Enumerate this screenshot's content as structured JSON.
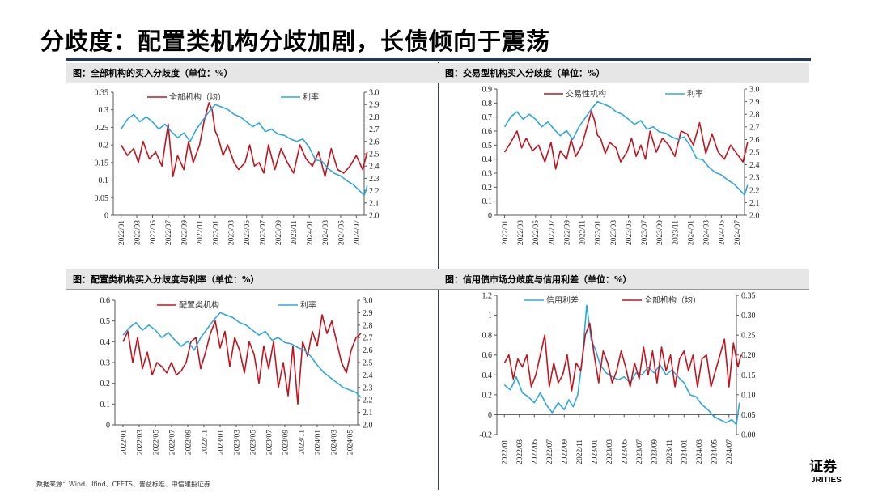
{
  "page": {
    "title": "分歧度：配置类机构分歧加剧，长债倾向于震荡",
    "source": "数据来源：Wind、Ifind、CFETS、普益标准、中信建投证券",
    "logo_text": "证券",
    "logo_subtext": "JRITIES",
    "colors": {
      "red": "#c0141e",
      "blue": "#2ea8dc",
      "rule": "#1f3a5f"
    }
  },
  "chart_data": [
    {
      "id": "p1",
      "type": "line",
      "title": "图：全部机构的买入分歧度（单位：%）",
      "x_labels": [
        "2022/01",
        "2022/03",
        "2022/05",
        "2022/07",
        "2022/09",
        "2022/11",
        "2023/01",
        "2023/03",
        "2023/05",
        "2023/07",
        "2023/09",
        "2023/11",
        "2024/01",
        "2024/03",
        "2024/05",
        "2024/07"
      ],
      "left_ticks": [
        "0",
        "0.05",
        "0.1",
        "0.15",
        "0.2",
        "0.25",
        "0.3",
        "0.35"
      ],
      "right_ticks": [
        "2.0",
        "2.1",
        "2.2",
        "2.3",
        "2.4",
        "2.5",
        "2.6",
        "2.7",
        "2.8",
        "2.9",
        "3.0"
      ],
      "left_range": [
        0,
        0.35
      ],
      "right_range": [
        2.0,
        3.0
      ],
      "series": [
        {
          "name": "全部机构（均）",
          "axis": "left",
          "color": "#c0141e",
          "x": [
            0,
            0.4,
            0.8,
            1.1,
            1.4,
            1.8,
            2.2,
            2.6,
            3.0,
            3.3,
            3.6,
            4.0,
            4.3,
            4.6,
            5.0,
            5.3,
            5.6,
            5.8,
            6.0,
            6.2,
            6.5,
            6.8,
            7.2,
            7.5,
            7.9,
            8.2,
            8.5,
            8.8,
            9.1,
            9.4,
            9.8,
            10.2,
            10.6,
            11.0,
            11.4,
            11.8,
            12.2,
            12.6,
            13.0,
            13.4,
            13.8,
            14.2,
            14.6,
            15.0,
            15.4,
            15.7
          ],
          "y": [
            0.2,
            0.17,
            0.19,
            0.15,
            0.21,
            0.16,
            0.18,
            0.14,
            0.26,
            0.11,
            0.17,
            0.13,
            0.21,
            0.15,
            0.2,
            0.27,
            0.32,
            0.3,
            0.24,
            0.22,
            0.17,
            0.2,
            0.15,
            0.13,
            0.15,
            0.2,
            0.14,
            0.15,
            0.12,
            0.2,
            0.13,
            0.19,
            0.15,
            0.12,
            0.2,
            0.16,
            0.14,
            0.18,
            0.11,
            0.19,
            0.13,
            0.12,
            0.14,
            0.17,
            0.13,
            0.18
          ]
        },
        {
          "name": "利率",
          "axis": "right",
          "color": "#2ea8dc",
          "x": [
            0,
            0.4,
            0.8,
            1.2,
            1.6,
            2.0,
            2.4,
            2.8,
            3.2,
            3.6,
            4.0,
            4.4,
            4.8,
            5.2,
            5.6,
            6.0,
            6.4,
            6.8,
            7.2,
            7.6,
            8.0,
            8.4,
            8.8,
            9.2,
            9.6,
            10.0,
            10.4,
            10.8,
            11.2,
            11.6,
            12.0,
            12.4,
            12.8,
            13.2,
            13.6,
            14.0,
            14.4,
            14.8,
            15.2,
            15.5,
            15.7
          ],
          "y": [
            2.7,
            2.78,
            2.82,
            2.76,
            2.8,
            2.76,
            2.7,
            2.74,
            2.68,
            2.63,
            2.67,
            2.6,
            2.7,
            2.77,
            2.84,
            2.9,
            2.88,
            2.86,
            2.82,
            2.8,
            2.76,
            2.72,
            2.75,
            2.68,
            2.7,
            2.66,
            2.65,
            2.62,
            2.6,
            2.62,
            2.55,
            2.45,
            2.44,
            2.38,
            2.34,
            2.32,
            2.28,
            2.25,
            2.2,
            2.16,
            2.24
          ]
        }
      ]
    },
    {
      "id": "p2",
      "type": "line",
      "title": "图：交易型机构买入分歧度（单位：%）",
      "x_labels": [
        "2022/01",
        "2022/03",
        "2022/05",
        "2022/07",
        "2022/09",
        "2022/11",
        "2023/01",
        "2023/03",
        "2023/05",
        "2023/07",
        "2023/09",
        "2023/11",
        "2024/01",
        "2024/03",
        "2024/05",
        "2024/07"
      ],
      "left_ticks": [
        "0",
        "0.1",
        "0.2",
        "0.3",
        "0.4",
        "0.5",
        "0.6",
        "0.7",
        "0.8",
        "0.9"
      ],
      "right_ticks": [
        "2.0",
        "2.1",
        "2.2",
        "2.3",
        "2.4",
        "2.5",
        "2.6",
        "2.7",
        "2.8",
        "2.9",
        "3.0"
      ],
      "left_range": [
        0,
        0.9
      ],
      "right_range": [
        2.0,
        3.0
      ],
      "series": [
        {
          "name": "交易性机构",
          "axis": "left",
          "color": "#c0141e",
          "x": [
            0,
            0.4,
            0.8,
            1.1,
            1.4,
            1.8,
            2.2,
            2.6,
            3.0,
            3.3,
            3.6,
            4.0,
            4.3,
            4.6,
            5.0,
            5.3,
            5.6,
            5.8,
            6.0,
            6.2,
            6.5,
            6.8,
            7.2,
            7.5,
            7.9,
            8.2,
            8.5,
            8.8,
            9.1,
            9.4,
            9.8,
            10.2,
            10.6,
            11.0,
            11.4,
            11.8,
            12.2,
            12.6,
            13.0,
            13.4,
            13.8,
            14.2,
            14.6,
            15.0,
            15.4,
            15.7
          ],
          "y": [
            0.45,
            0.52,
            0.6,
            0.48,
            0.55,
            0.46,
            0.5,
            0.38,
            0.52,
            0.33,
            0.46,
            0.4,
            0.54,
            0.42,
            0.5,
            0.62,
            0.74,
            0.68,
            0.57,
            0.55,
            0.44,
            0.52,
            0.48,
            0.38,
            0.45,
            0.55,
            0.42,
            0.5,
            0.4,
            0.6,
            0.45,
            0.55,
            0.5,
            0.42,
            0.6,
            0.58,
            0.5,
            0.66,
            0.44,
            0.58,
            0.45,
            0.4,
            0.5,
            0.44,
            0.38,
            0.52
          ]
        },
        {
          "name": "利率",
          "axis": "right",
          "color": "#2ea8dc",
          "x": [
            0,
            0.4,
            0.8,
            1.2,
            1.6,
            2.0,
            2.4,
            2.8,
            3.2,
            3.6,
            4.0,
            4.4,
            4.8,
            5.2,
            5.6,
            6.0,
            6.4,
            6.8,
            7.2,
            7.6,
            8.0,
            8.4,
            8.8,
            9.2,
            9.6,
            10.0,
            10.4,
            10.8,
            11.2,
            11.6,
            12.0,
            12.4,
            12.8,
            13.2,
            13.6,
            14.0,
            14.4,
            14.8,
            15.2,
            15.5,
            15.7
          ],
          "y": [
            2.7,
            2.78,
            2.82,
            2.76,
            2.8,
            2.76,
            2.7,
            2.74,
            2.68,
            2.63,
            2.67,
            2.6,
            2.7,
            2.77,
            2.84,
            2.9,
            2.88,
            2.86,
            2.82,
            2.8,
            2.76,
            2.72,
            2.75,
            2.68,
            2.7,
            2.66,
            2.65,
            2.62,
            2.6,
            2.62,
            2.55,
            2.45,
            2.44,
            2.38,
            2.34,
            2.32,
            2.28,
            2.25,
            2.2,
            2.16,
            2.24
          ]
        }
      ]
    },
    {
      "id": "p3",
      "type": "line",
      "title": "图：配置类机构买入分歧度与利率（单位：%）",
      "x_labels": [
        "2022/01",
        "2022/03",
        "2022/05",
        "2022/07",
        "2022/09",
        "2022/11",
        "2023/01",
        "2023/03",
        "2023/05",
        "2023/07",
        "2023/09",
        "2023/11",
        "2024/01",
        "2024/03",
        "2024/05"
      ],
      "left_ticks": [
        "0",
        "0.1",
        "0.2",
        "0.3",
        "0.4",
        "0.5",
        "0.6"
      ],
      "right_ticks": [
        "2.0",
        "2.1",
        "2.2",
        "2.3",
        "2.4",
        "2.5",
        "2.6",
        "2.7",
        "2.8",
        "2.9",
        "3.0"
      ],
      "left_range": [
        0,
        0.6
      ],
      "right_range": [
        2.0,
        3.0
      ],
      "series": [
        {
          "name": "配置类机构",
          "axis": "left",
          "color": "#c0141e",
          "x": [
            0,
            0.3,
            0.6,
            0.9,
            1.2,
            1.5,
            1.8,
            2.1,
            2.4,
            2.7,
            3.0,
            3.3,
            3.6,
            3.9,
            4.2,
            4.5,
            4.8,
            5.1,
            5.4,
            5.7,
            6.0,
            6.3,
            6.6,
            6.9,
            7.2,
            7.5,
            7.8,
            8.1,
            8.4,
            8.7,
            9.0,
            9.3,
            9.6,
            9.9,
            10.2,
            10.5,
            10.8,
            11.1,
            11.4,
            11.7,
            12.0,
            12.3,
            12.6,
            12.9,
            13.2,
            13.5,
            13.8,
            14.1,
            14.4,
            14.7
          ],
          "y": [
            0.4,
            0.45,
            0.3,
            0.42,
            0.27,
            0.35,
            0.24,
            0.3,
            0.28,
            0.25,
            0.3,
            0.24,
            0.26,
            0.3,
            0.4,
            0.42,
            0.27,
            0.35,
            0.44,
            0.5,
            0.37,
            0.45,
            0.28,
            0.42,
            0.36,
            0.25,
            0.4,
            0.34,
            0.2,
            0.38,
            0.27,
            0.4,
            0.18,
            0.3,
            0.14,
            0.38,
            0.1,
            0.4,
            0.33,
            0.45,
            0.38,
            0.53,
            0.44,
            0.5,
            0.4,
            0.3,
            0.25,
            0.36,
            0.42,
            0.44
          ]
        },
        {
          "name": "利率",
          "axis": "right",
          "color": "#2ea8dc",
          "x": [
            0,
            0.4,
            0.8,
            1.2,
            1.6,
            2.0,
            2.4,
            2.8,
            3.2,
            3.6,
            4.0,
            4.4,
            4.8,
            5.2,
            5.6,
            6.0,
            6.4,
            6.8,
            7.2,
            7.6,
            8.0,
            8.4,
            8.8,
            9.2,
            9.6,
            10.0,
            10.4,
            10.8,
            11.2,
            11.6,
            12.0,
            12.4,
            12.8,
            13.2,
            13.6,
            14.0,
            14.4,
            14.7
          ],
          "y": [
            2.72,
            2.78,
            2.82,
            2.76,
            2.8,
            2.76,
            2.7,
            2.74,
            2.68,
            2.63,
            2.67,
            2.6,
            2.7,
            2.77,
            2.84,
            2.9,
            2.88,
            2.86,
            2.82,
            2.8,
            2.76,
            2.72,
            2.75,
            2.68,
            2.7,
            2.66,
            2.65,
            2.62,
            2.6,
            2.55,
            2.48,
            2.42,
            2.38,
            2.34,
            2.3,
            2.28,
            2.26,
            2.22
          ]
        }
      ]
    },
    {
      "id": "p4",
      "type": "line",
      "title": "图：信用债市场分歧度与信用利差（单位：%）",
      "x_labels": [
        "2022/01",
        "2022/03",
        "2022/05",
        "2022/07",
        "2022/09",
        "2022/11",
        "2023/01",
        "2023/03",
        "2023/05",
        "2023/07",
        "2023/09",
        "2023/11",
        "2024/01",
        "2024/03",
        "2024/05",
        "2024/07"
      ],
      "left_ticks": [
        "-0.2",
        "0",
        "0.2",
        "0.4",
        "0.6",
        "0.8",
        "1",
        "1.2"
      ],
      "right_ticks": [
        "0.00",
        "0.05",
        "0.10",
        "0.15",
        "0.20",
        "0.25",
        "0.30",
        "0.35"
      ],
      "left_range": [
        -0.2,
        1.2
      ],
      "right_range": [
        0.0,
        0.35
      ],
      "series": [
        {
          "name": "信用利差",
          "axis": "left",
          "color": "#2ea8dc",
          "x": [
            0,
            0.4,
            0.8,
            1.2,
            1.6,
            2.0,
            2.4,
            2.8,
            3.2,
            3.6,
            4.0,
            4.3,
            4.6,
            4.9,
            5.2,
            5.5,
            5.8,
            6.1,
            6.4,
            6.8,
            7.2,
            7.6,
            8.0,
            8.4,
            8.8,
            9.2,
            9.6,
            10.0,
            10.4,
            10.8,
            11.2,
            11.6,
            12.0,
            12.4,
            12.8,
            13.2,
            13.6,
            14.0,
            14.4,
            14.8,
            15.2,
            15.5,
            15.7
          ],
          "y": [
            0.3,
            0.25,
            0.38,
            0.22,
            0.18,
            0.12,
            0.22,
            0.1,
            0.02,
            0.12,
            0.05,
            0.15,
            0.08,
            0.2,
            0.55,
            1.1,
            0.75,
            0.65,
            0.5,
            0.42,
            0.38,
            0.35,
            0.38,
            0.32,
            0.42,
            0.4,
            0.48,
            0.42,
            0.5,
            0.4,
            0.45,
            0.38,
            0.32,
            0.2,
            0.18,
            0.1,
            0.05,
            -0.02,
            -0.05,
            -0.08,
            -0.05,
            -0.1,
            0.12
          ]
        },
        {
          "name": "全部机构（均）",
          "axis": "right",
          "color": "#c0141e",
          "x": [
            0,
            0.3,
            0.6,
            0.9,
            1.2,
            1.5,
            1.8,
            2.1,
            2.4,
            2.7,
            3.0,
            3.3,
            3.6,
            3.9,
            4.2,
            4.5,
            4.8,
            5.1,
            5.4,
            5.7,
            6.0,
            6.3,
            6.6,
            6.9,
            7.2,
            7.5,
            7.8,
            8.1,
            8.4,
            8.7,
            9.0,
            9.3,
            9.6,
            9.9,
            10.2,
            10.5,
            10.8,
            11.1,
            11.4,
            11.7,
            12.0,
            12.3,
            12.6,
            12.9,
            13.2,
            13.5,
            13.8,
            14.1,
            14.4,
            14.7,
            15.0,
            15.3,
            15.6,
            15.8
          ],
          "y": [
            0.18,
            0.2,
            0.14,
            0.19,
            0.17,
            0.2,
            0.12,
            0.15,
            0.2,
            0.25,
            0.12,
            0.18,
            0.13,
            0.15,
            0.2,
            0.11,
            0.18,
            0.16,
            0.25,
            0.28,
            0.2,
            0.13,
            0.21,
            0.18,
            0.13,
            0.16,
            0.21,
            0.17,
            0.12,
            0.18,
            0.14,
            0.22,
            0.15,
            0.21,
            0.13,
            0.22,
            0.16,
            0.2,
            0.12,
            0.19,
            0.21,
            0.16,
            0.2,
            0.12,
            0.19,
            0.2,
            0.12,
            0.16,
            0.2,
            0.24,
            0.12,
            0.23,
            0.17,
            0.2
          ]
        }
      ]
    }
  ]
}
